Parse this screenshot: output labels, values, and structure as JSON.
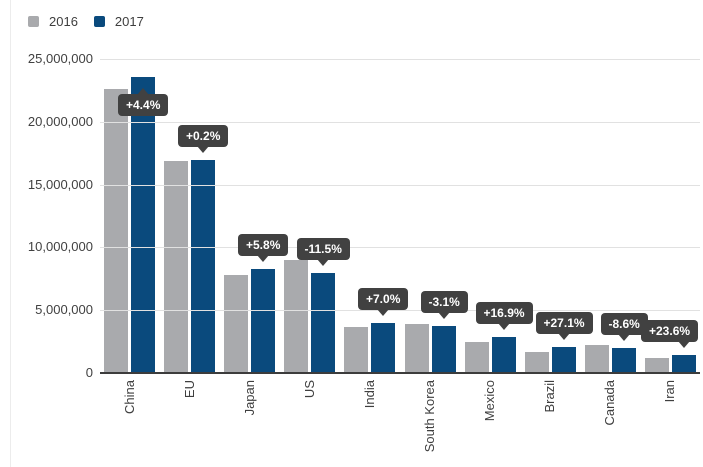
{
  "chart_data": {
    "type": "bar",
    "categories": [
      "China",
      "EU",
      "Japan",
      "US",
      "India",
      "South Korea",
      "Mexico",
      "Brazil",
      "Canada",
      "Iran"
    ],
    "series": [
      {
        "name": "2016",
        "color": "#a9aaad",
        "values": [
          22600000,
          16900000,
          7800000,
          9000000,
          3700000,
          3900000,
          2450000,
          1650000,
          2200000,
          1160000
        ]
      },
      {
        "name": "2017",
        "color": "#0a4a7d",
        "values": [
          23600000,
          16930000,
          8250000,
          7965000,
          3960000,
          3780000,
          2864000,
          2097000,
          2011000,
          1434000
        ]
      }
    ],
    "change_labels": [
      "+4.4%",
      "+0.2%",
      "+5.8%",
      "-11.5%",
      "+7.0%",
      "-3.1%",
      "+16.9%",
      "+27.1%",
      "-8.6%",
      "+23.6%"
    ],
    "change_label_placement": [
      "inside",
      "above",
      "above",
      "above",
      "above",
      "above",
      "above",
      "above",
      "above",
      "above"
    ],
    "y_ticks": [
      "0",
      "5,000,000",
      "10,000,000",
      "15,000,000",
      "20,000,000",
      "25,000,000"
    ],
    "ylim": [
      0,
      25000000
    ],
    "grid": true,
    "legend_position": "top-left",
    "xlabel": "",
    "ylabel": "",
    "colors": {
      "bar_2016": "#a9aaad",
      "bar_2017": "#0a4a7d",
      "tooltip_bg": "#414141",
      "tooltip_text": "#ffffff",
      "axis_text": "#3f3f3f",
      "gridline": "#e1e1e1",
      "axis_line": "#3c3c3c"
    }
  }
}
